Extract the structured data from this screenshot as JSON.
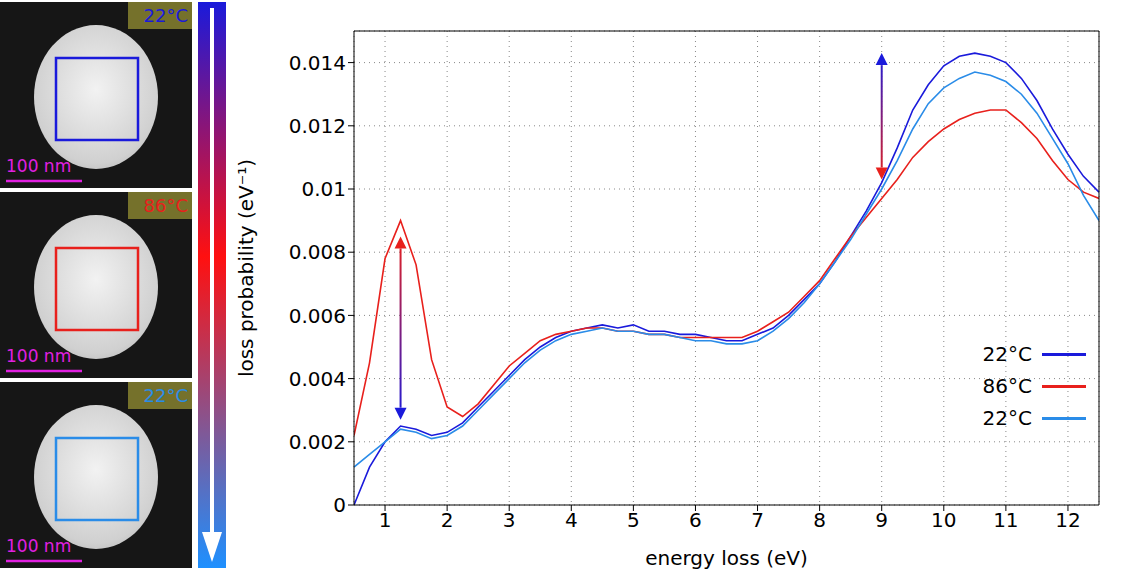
{
  "chart_data": {
    "type": "line",
    "xlabel": "energy loss (eV)",
    "ylabel": "loss probability (eV⁻¹)",
    "xlim": [
      0.5,
      12.5
    ],
    "xticks": [
      1,
      2,
      3,
      4,
      5,
      6,
      7,
      8,
      9,
      10,
      11,
      12
    ],
    "ylim": [
      0,
      0.015
    ],
    "yticks": [
      0,
      0.002,
      0.004,
      0.006,
      0.008,
      0.01,
      0.012,
      0.014
    ],
    "grid": true,
    "legend": "lower right",
    "x": [
      0.5,
      0.75,
      1,
      1.25,
      1.5,
      1.75,
      2,
      2.25,
      2.5,
      2.75,
      3,
      3.25,
      3.5,
      3.75,
      4,
      4.25,
      4.5,
      4.75,
      5,
      5.25,
      5.5,
      5.75,
      6,
      6.25,
      6.5,
      6.75,
      7,
      7.25,
      7.5,
      7.75,
      8,
      8.25,
      8.5,
      8.75,
      9,
      9.25,
      9.5,
      9.75,
      10,
      10.25,
      10.5,
      10.75,
      11,
      11.25,
      11.5,
      11.75,
      12,
      12.25,
      12.5
    ],
    "series": [
      {
        "name": "22°C",
        "color": "#1a1adb",
        "values": [
          0,
          0.0012,
          0.002,
          0.0025,
          0.0024,
          0.0022,
          0.0023,
          0.0026,
          0.0031,
          0.0036,
          0.0041,
          0.0046,
          0.005,
          0.0053,
          0.0055,
          0.0056,
          0.0057,
          0.0056,
          0.0057,
          0.0055,
          0.0055,
          0.0054,
          0.0054,
          0.0053,
          0.0052,
          0.0052,
          0.0054,
          0.0056,
          0.006,
          0.0065,
          0.007,
          0.0077,
          0.0085,
          0.0093,
          0.0102,
          0.0113,
          0.0125,
          0.0133,
          0.0139,
          0.0142,
          0.0143,
          0.0142,
          0.014,
          0.0135,
          0.0128,
          0.0119,
          0.0111,
          0.0104,
          0.0099
        ]
      },
      {
        "name": "86°C",
        "color": "#e8201c",
        "values": [
          0.0022,
          0.0045,
          0.0078,
          0.009,
          0.0076,
          0.0046,
          0.0031,
          0.0028,
          0.0032,
          0.0038,
          0.0044,
          0.0048,
          0.0052,
          0.0054,
          0.0055,
          0.0056,
          0.0056,
          0.0055,
          0.0055,
          0.0054,
          0.0054,
          0.0053,
          0.0053,
          0.0053,
          0.0053,
          0.0053,
          0.0055,
          0.0058,
          0.0061,
          0.0066,
          0.0071,
          0.0078,
          0.0085,
          0.0091,
          0.0097,
          0.0103,
          0.011,
          0.0115,
          0.0119,
          0.0122,
          0.0124,
          0.0125,
          0.0125,
          0.0121,
          0.0116,
          0.0109,
          0.0103,
          0.0099,
          0.0097
        ]
      },
      {
        "name": "22°C",
        "color": "#2a8ce8",
        "values": [
          0.0012,
          0.0016,
          0.002,
          0.0024,
          0.0023,
          0.0021,
          0.0022,
          0.0025,
          0.003,
          0.0035,
          0.004,
          0.0045,
          0.0049,
          0.0052,
          0.0054,
          0.0055,
          0.0056,
          0.0055,
          0.0055,
          0.0054,
          0.0054,
          0.0053,
          0.0052,
          0.0052,
          0.0051,
          0.0051,
          0.0052,
          0.0055,
          0.0059,
          0.0064,
          0.007,
          0.0077,
          0.0084,
          0.0092,
          0.01,
          0.0109,
          0.0119,
          0.0127,
          0.0132,
          0.0135,
          0.0137,
          0.0136,
          0.0134,
          0.013,
          0.0124,
          0.0116,
          0.0108,
          0.0098,
          0.009
        ]
      }
    ],
    "annotations": [
      {
        "x": 1.25,
        "y_from": 0.0085,
        "y_to": 0.0027,
        "colors": [
          "#e8201c",
          "#1a1adb"
        ]
      },
      {
        "x": 9,
        "y_from": 0.0143,
        "y_to": 0.0103,
        "colors": [
          "#1a1adb",
          "#e8201c"
        ]
      }
    ]
  },
  "panels": [
    {
      "label": "22°C",
      "scale_bar": "100 nm",
      "color": "#1a1adb"
    },
    {
      "label": "86°C",
      "scale_bar": "100 nm",
      "color": "#e8201c"
    },
    {
      "label": "22°C",
      "scale_bar": "100 nm",
      "color": "#2a8ce8"
    }
  ]
}
